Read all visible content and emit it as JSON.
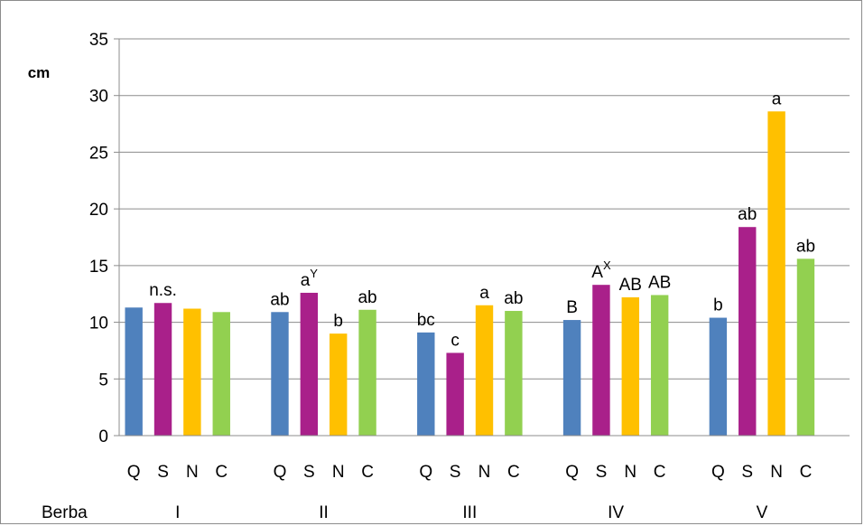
{
  "chart_data": {
    "type": "bar",
    "ylabel": "cm",
    "ylim": [
      0,
      35
    ],
    "yticks": [
      "0",
      "5",
      "10",
      "15",
      "20",
      "25",
      "30",
      "35"
    ],
    "grid": "horizontal",
    "group_axis_label": "Berba",
    "series_names": [
      "Q",
      "S",
      "N",
      "C"
    ],
    "colors": [
      "#4f81bd",
      "#a9208a",
      "#ffc000",
      "#92d050"
    ],
    "groups": [
      {
        "name": "I",
        "values": [
          11.3,
          11.7,
          11.2,
          10.9
        ],
        "labels": [
          "",
          "n.s.",
          "",
          ""
        ],
        "sups": [
          "",
          "",
          "",
          ""
        ]
      },
      {
        "name": "II",
        "values": [
          10.9,
          12.6,
          9.0,
          11.1
        ],
        "labels": [
          "ab",
          "a",
          "b",
          "ab"
        ],
        "sups": [
          "",
          "Y",
          "",
          ""
        ]
      },
      {
        "name": "III",
        "values": [
          9.1,
          7.3,
          11.5,
          11.0
        ],
        "labels": [
          "bc",
          "c",
          "a",
          "ab"
        ],
        "sups": [
          "",
          "",
          "",
          ""
        ]
      },
      {
        "name": "IV",
        "values": [
          10.2,
          13.3,
          12.2,
          12.4
        ],
        "labels": [
          "B",
          "A",
          "AB",
          "AB"
        ],
        "sups": [
          "",
          "X",
          "",
          ""
        ]
      },
      {
        "name": "V",
        "values": [
          10.4,
          18.4,
          28.6,
          15.6
        ],
        "labels": [
          "b",
          "ab",
          "a",
          "ab"
        ],
        "sups": [
          "",
          "",
          "",
          ""
        ]
      }
    ]
  }
}
